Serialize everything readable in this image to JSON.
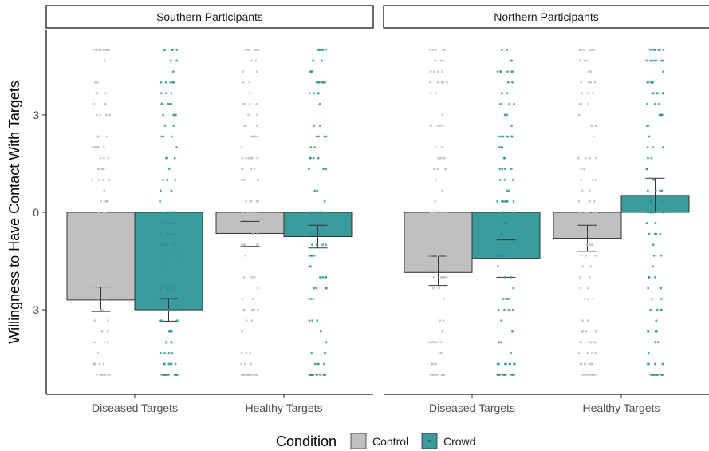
{
  "chart_data": {
    "type": "bar",
    "facets": [
      "Southern Participants",
      "Northern Participants"
    ],
    "categories": [
      "Diseased Targets",
      "Healthy Targets"
    ],
    "ylabel": "Willingness to Have Contact With Targets",
    "xlabel": "",
    "ylim": [
      -5.3,
      5.3
    ],
    "yticks": [
      3,
      0,
      -3
    ],
    "ytick_labels": [
      "3",
      "0",
      "-3"
    ],
    "grid": false,
    "legend": {
      "title": "Condition",
      "position": "bottom",
      "entries": [
        "Control",
        "Crowd"
      ]
    },
    "colors": {
      "Control": "#c0c0c0",
      "Crowd": "#3a9c9c",
      "Control_points": "#bdbdbd",
      "Crowd_points": "#2a8f8f"
    },
    "series": [
      {
        "name": "Control",
        "panels": [
          {
            "values": [
              -2.7,
              -0.65
            ],
            "err_low": [
              -3.05,
              -1.05
            ],
            "err_high": [
              -2.3,
              -0.28
            ]
          },
          {
            "values": [
              -1.85,
              -0.8
            ],
            "err_low": [
              -2.25,
              -1.2
            ],
            "err_high": [
              -1.35,
              -0.4
            ]
          }
        ]
      },
      {
        "name": "Crowd",
        "panels": [
          {
            "values": [
              -3.0,
              -0.75
            ],
            "err_low": [
              -3.35,
              -1.1
            ],
            "err_high": [
              -2.65,
              -0.4
            ]
          },
          {
            "values": [
              -1.42,
              0.52
            ],
            "err_low": [
              -2.0,
              0.0
            ],
            "err_high": [
              -0.85,
              1.05
            ]
          }
        ]
      }
    ]
  }
}
